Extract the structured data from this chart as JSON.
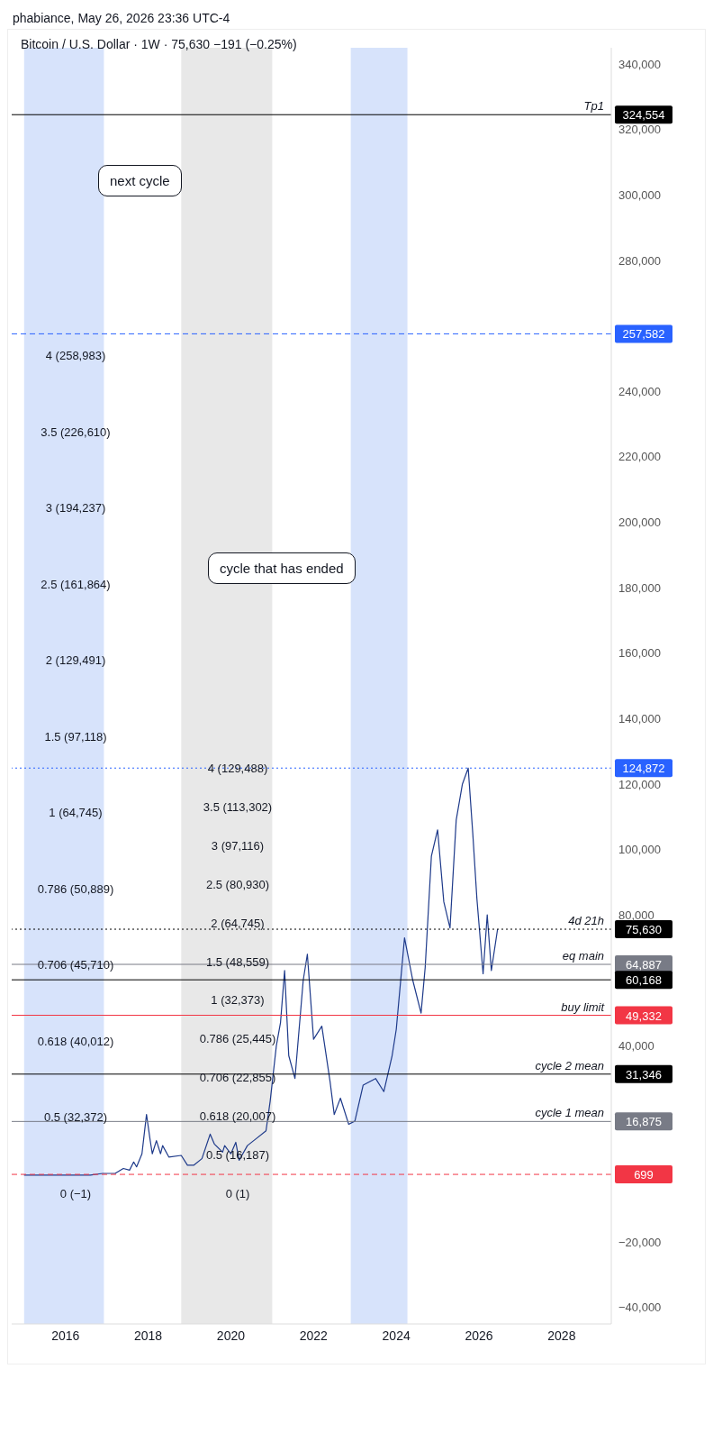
{
  "chart_data": {
    "type": "line",
    "title": "Bitcoin / U.S. Dollar · 1W · 75,630 −191 (−0.25%)",
    "subtitle": "phabiance, May 26, 2026 23:36 UTC-4",
    "x": [
      2015.0,
      2015.5,
      2015.9,
      2016.2,
      2016.45,
      2016.6,
      2016.9,
      2017.0,
      2017.2,
      2017.4,
      2017.55,
      2017.65,
      2017.72,
      2017.85,
      2017.96,
      2018.05,
      2018.1,
      2018.2,
      2018.3,
      2018.35,
      2018.5,
      2018.8,
      2018.95,
      2019.1,
      2019.3,
      2019.5,
      2019.6,
      2019.8,
      2019.85,
      2020.0,
      2020.12,
      2020.2,
      2020.4,
      2020.6,
      2020.85,
      2020.95,
      2021.1,
      2021.2,
      2021.3,
      2021.4,
      2021.55,
      2021.75,
      2021.85,
      2022.0,
      2022.2,
      2022.4,
      2022.5,
      2022.65,
      2022.85,
      2023.0,
      2023.2,
      2023.5,
      2023.7,
      2023.9,
      2024.0,
      2024.2,
      2024.4,
      2024.6,
      2024.7,
      2024.85,
      2025.0,
      2025.15,
      2025.3,
      2025.45,
      2025.6,
      2025.74,
      2025.85,
      2025.95,
      2026.1,
      2026.2,
      2026.3,
      2026.45
    ],
    "series": [
      {
        "color": "#1e3a8a",
        "values": [
          500,
          500,
          500,
          500,
          500,
          500,
          1000,
          1000,
          1000,
          2500,
          2000,
          4500,
          3000,
          7000,
          19000,
          11000,
          7000,
          11000,
          7000,
          9500,
          6000,
          6500,
          3500,
          3500,
          5500,
          13000,
          10000,
          7500,
          9500,
          7000,
          10500,
          5000,
          9500,
          11500,
          14000,
          23000,
          40000,
          47000,
          63000,
          37000,
          30000,
          60000,
          68000,
          42000,
          46000,
          29000,
          19000,
          24000,
          16000,
          17000,
          28000,
          30000,
          26000,
          37000,
          45000,
          73000,
          60000,
          50000,
          64000,
          98000,
          106000,
          84000,
          76000,
          109000,
          120000,
          124872,
          105000,
          85000,
          62000,
          80000,
          63000,
          75630
        ]
      }
    ],
    "xlim": [
      2014.7,
      2029.2
    ],
    "xticks": [
      2016,
      2018,
      2020,
      2022,
      2024,
      2026,
      2028
    ],
    "ylim": [
      -45000,
      345000
    ],
    "yticks": [
      {
        "value": -40000,
        "label": "−40,000"
      },
      {
        "value": -20000,
        "label": "−20,000"
      },
      {
        "value": 0,
        "label": null
      },
      {
        "value": 40000,
        "label": "40,000"
      },
      {
        "value": 60000,
        "label": null
      },
      {
        "value": 80000,
        "label": "80,000"
      },
      {
        "value": 100000,
        "label": "100,000"
      },
      {
        "value": 120000,
        "label": "120,000"
      },
      {
        "value": 140000,
        "label": "140,000"
      },
      {
        "value": 160000,
        "label": "160,000"
      },
      {
        "value": 180000,
        "label": "180,000"
      },
      {
        "value": 200000,
        "label": "200,000"
      },
      {
        "value": 220000,
        "label": "220,000"
      },
      {
        "value": 240000,
        "label": "240,000"
      },
      {
        "value": 280000,
        "label": "280,000"
      },
      {
        "value": 300000,
        "label": "300,000"
      },
      {
        "value": 320000,
        "label": "320,000"
      },
      {
        "value": 340000,
        "label": "340,000"
      }
    ],
    "marker": "none",
    "line_style": "solid",
    "bands": [
      {
        "axis": "x",
        "from": 2015.0,
        "to": 2016.93,
        "color": "#bcd0f8"
      },
      {
        "axis": "x",
        "from": 2018.8,
        "to": 2021.0,
        "color": "#d9d9d9"
      },
      {
        "axis": "x",
        "from": 2022.9,
        "to": 2024.27,
        "color": "#bcd0f8"
      }
    ],
    "ref_lines": [
      {
        "axis": "y",
        "value": 324554,
        "label": "324,554",
        "color": "#000000",
        "line_style": "solid"
      },
      {
        "axis": "y",
        "value": 257582,
        "label": "257,582",
        "color": "#2962ff",
        "line_style": "dashed"
      },
      {
        "axis": "y",
        "value": 124872,
        "label": "124,872",
        "color": "#2962ff",
        "line_style": "dotted"
      },
      {
        "axis": "y",
        "value": 75630,
        "label": "75,630",
        "color": "#000000",
        "line_style": "dotted"
      },
      {
        "axis": "y",
        "value": 64887,
        "label": "64,887",
        "color": "#787b86",
        "line_style": "solid"
      },
      {
        "axis": "y",
        "value": 60168,
        "label": "60,168",
        "color": "#000000",
        "line_style": "solid"
      },
      {
        "axis": "y",
        "value": 49332,
        "label": "49,332",
        "color": "#f23645",
        "line_style": "solid"
      },
      {
        "axis": "y",
        "value": 31346,
        "label": "31,346",
        "color": "#000000",
        "line_style": "solid"
      },
      {
        "axis": "y",
        "value": 16875,
        "label": "16,875",
        "color": "#787b86",
        "line_style": "solid"
      },
      {
        "axis": "y",
        "value": 699,
        "label": "699",
        "color": "#f23645",
        "line_style": "dashed"
      }
    ],
    "annotations": [
      "next cycle",
      "cycle that has ended",
      "4 (258,983)",
      "3.5 (226,610)",
      "3 (194,237)",
      "2.5 (161,864)",
      "2 (129,491)",
      "1.5 (97,118)",
      "1 (64,745)",
      "0.786 (50,889)",
      "0.706 (45,710)",
      "0.618 (40,012)",
      "0.5 (32,372)",
      "0 (−1)",
      "4 (129,488)",
      "3.5 (113,302)",
      "3 (97,116)",
      "2.5 (80,930)",
      "2 (64,745)",
      "1.5 (48,559)",
      "1 (32,373)",
      "0.786 (25,445)",
      "0.706 (22,855)",
      "0.618 (20,007)",
      "0.5 (16,187)",
      "0 (1)",
      {
        "text": "Tp1",
        "y": 324554
      },
      {
        "text": "4d 21h",
        "y": 75630
      },
      {
        "text": "eq main",
        "y": 64887
      },
      {
        "text": "buy limit",
        "y": 49332
      },
      {
        "text": "cycle 2 mean",
        "y": 31346
      },
      {
        "text": "cycle 1 mean",
        "y": 16875
      }
    ]
  }
}
